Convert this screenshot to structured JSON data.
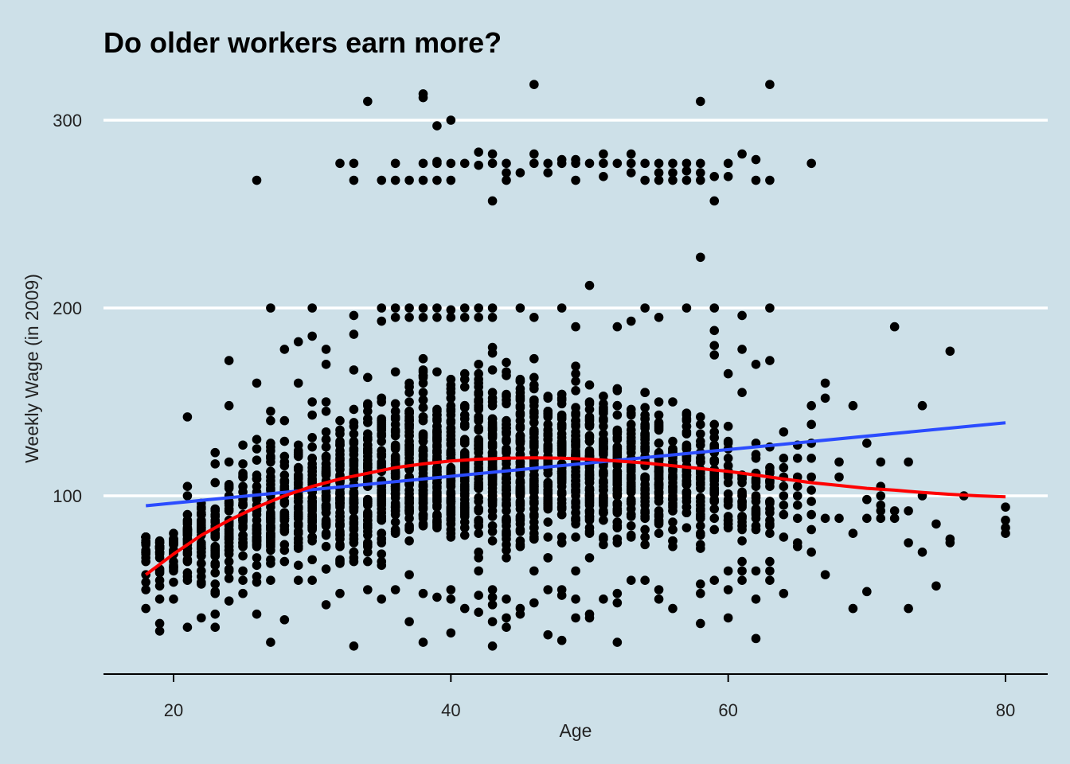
{
  "chart_data": {
    "type": "scatter",
    "title": "Do older workers earn more?",
    "xlabel": "Age",
    "ylabel": "Weekly Wage (in 2009)",
    "xlim": [
      15,
      83
    ],
    "ylim": [
      10,
      330
    ],
    "x_ticks": [
      20,
      40,
      60,
      80
    ],
    "y_ticks": [
      100,
      200,
      300
    ],
    "grid": "horizontal major lines only",
    "colors": {
      "background": "#cde0e8",
      "gridline": "#ffffff",
      "points": "#000000",
      "linear_fit": "#2b4cff",
      "smooth_fit": "#ff0000"
    },
    "fits": [
      {
        "kind": "linear",
        "color": "#2b4cff",
        "points": [
          [
            18,
            94.7
          ],
          [
            80,
            138.9
          ]
        ]
      },
      {
        "kind": "polynomial",
        "color": "#ff0000",
        "points": [
          [
            18,
            58
          ],
          [
            20,
            69
          ],
          [
            22,
            79
          ],
          [
            24,
            87
          ],
          [
            26,
            94
          ],
          [
            28,
            100
          ],
          [
            30,
            105
          ],
          [
            32,
            109
          ],
          [
            34,
            112
          ],
          [
            36,
            115
          ],
          [
            38,
            117
          ],
          [
            40,
            118.5
          ],
          [
            42,
            119.5
          ],
          [
            44,
            120
          ],
          [
            46,
            120.2
          ],
          [
            48,
            120
          ],
          [
            50,
            119.5
          ],
          [
            52,
            118.5
          ],
          [
            54,
            117.5
          ],
          [
            56,
            116
          ],
          [
            58,
            114.5
          ],
          [
            60,
            113
          ],
          [
            62,
            111
          ],
          [
            64,
            109
          ],
          [
            66,
            107
          ],
          [
            68,
            105.5
          ],
          [
            70,
            104
          ],
          [
            72,
            103
          ],
          [
            74,
            101.8
          ],
          [
            76,
            100.8
          ],
          [
            78,
            100
          ],
          [
            80,
            99.5
          ]
        ]
      }
    ],
    "bands": [
      [
        18,
        40,
        78,
        78,
        0.6
      ],
      [
        19,
        30,
        78,
        72,
        0.5
      ],
      [
        20,
        40,
        82,
        74,
        0.6
      ],
      [
        21,
        48,
        92,
        78,
        0.7
      ],
      [
        22,
        42,
        100,
        78,
        0.8
      ],
      [
        23,
        38,
        110,
        80,
        0.8
      ],
      [
        24,
        42,
        120,
        82,
        0.9
      ],
      [
        25,
        48,
        125,
        84,
        1.0
      ],
      [
        26,
        52,
        130,
        86,
        1.0
      ],
      [
        27,
        55,
        140,
        90,
        1.1
      ],
      [
        28,
        56,
        145,
        92,
        1.2
      ],
      [
        29,
        58,
        150,
        95,
        1.2
      ],
      [
        30,
        58,
        155,
        98,
        1.3
      ],
      [
        31,
        55,
        155,
        100,
        1.3
      ],
      [
        32,
        50,
        160,
        100,
        1.4
      ],
      [
        33,
        50,
        160,
        102,
        1.4
      ],
      [
        34,
        55,
        165,
        104,
        1.5
      ],
      [
        35,
        55,
        170,
        106,
        1.6
      ],
      [
        36,
        55,
        175,
        108,
        1.6
      ],
      [
        37,
        55,
        180,
        110,
        1.7
      ],
      [
        38,
        55,
        185,
        112,
        1.7
      ],
      [
        39,
        60,
        185,
        112,
        1.8
      ],
      [
        40,
        60,
        185,
        114,
        1.8
      ],
      [
        41,
        58,
        185,
        114,
        1.8
      ],
      [
        42,
        58,
        190,
        116,
        1.8
      ],
      [
        43,
        58,
        190,
        116,
        1.8
      ],
      [
        44,
        58,
        190,
        116,
        1.8
      ],
      [
        45,
        58,
        185,
        116,
        1.8
      ],
      [
        46,
        58,
        185,
        116,
        1.8
      ],
      [
        47,
        58,
        180,
        116,
        1.7
      ],
      [
        48,
        58,
        180,
        116,
        1.7
      ],
      [
        49,
        58,
        180,
        116,
        1.7
      ],
      [
        50,
        58,
        175,
        115,
        1.6
      ],
      [
        51,
        58,
        175,
        115,
        1.6
      ],
      [
        52,
        58,
        170,
        115,
        1.6
      ],
      [
        53,
        58,
        170,
        114,
        1.5
      ],
      [
        54,
        60,
        165,
        114,
        1.4
      ],
      [
        55,
        60,
        160,
        112,
        1.3
      ],
      [
        56,
        62,
        160,
        112,
        1.2
      ],
      [
        57,
        62,
        155,
        112,
        1.1
      ],
      [
        58,
        60,
        155,
        110,
        1.0
      ],
      [
        59,
        62,
        150,
        110,
        0.9
      ],
      [
        60,
        65,
        145,
        108,
        0.7
      ],
      [
        61,
        68,
        140,
        106,
        0.6
      ],
      [
        62,
        70,
        135,
        104,
        0.5
      ],
      [
        63,
        72,
        130,
        104,
        0.4
      ]
    ],
    "points": [
      [
        18,
        40
      ],
      [
        18,
        50
      ],
      [
        18,
        58
      ],
      [
        18,
        65
      ],
      [
        18,
        70
      ],
      [
        18,
        75
      ],
      [
        19,
        28
      ],
      [
        19,
        32
      ],
      [
        19,
        45
      ],
      [
        19,
        55
      ],
      [
        19,
        60
      ],
      [
        20,
        45
      ],
      [
        20,
        60
      ],
      [
        20,
        70
      ],
      [
        20,
        80
      ],
      [
        21,
        30
      ],
      [
        21,
        55
      ],
      [
        21,
        65
      ],
      [
        21,
        75
      ],
      [
        21,
        90
      ],
      [
        21,
        100
      ],
      [
        21,
        105
      ],
      [
        21,
        142
      ],
      [
        22,
        35
      ],
      [
        22,
        60
      ],
      [
        22,
        70
      ],
      [
        22,
        82
      ],
      [
        22,
        90
      ],
      [
        22,
        96
      ],
      [
        23,
        30
      ],
      [
        23,
        37
      ],
      [
        23,
        117
      ],
      [
        23,
        123
      ],
      [
        24,
        44
      ],
      [
        24,
        118
      ],
      [
        24,
        148
      ],
      [
        24,
        172
      ],
      [
        25,
        48
      ],
      [
        25,
        95
      ],
      [
        25,
        110
      ],
      [
        25,
        127
      ],
      [
        26,
        37
      ],
      [
        26,
        125
      ],
      [
        26,
        130
      ],
      [
        26,
        160
      ],
      [
        26,
        268
      ],
      [
        27,
        22
      ],
      [
        27,
        55
      ],
      [
        27,
        120
      ],
      [
        27,
        140
      ],
      [
        27,
        145
      ],
      [
        27,
        200
      ],
      [
        28,
        34
      ],
      [
        28,
        140
      ],
      [
        28,
        178
      ],
      [
        29,
        55
      ],
      [
        29,
        160
      ],
      [
        29,
        182
      ],
      [
        30,
        55
      ],
      [
        30,
        150
      ],
      [
        30,
        185
      ],
      [
        30,
        200
      ],
      [
        31,
        42
      ],
      [
        31,
        150
      ],
      [
        31,
        170
      ],
      [
        31,
        178
      ],
      [
        32,
        48
      ],
      [
        32,
        140
      ],
      [
        32,
        277
      ],
      [
        33,
        20
      ],
      [
        33,
        146
      ],
      [
        33,
        167
      ],
      [
        33,
        186
      ],
      [
        33,
        196
      ],
      [
        33,
        268
      ],
      [
        33,
        277
      ],
      [
        34,
        50
      ],
      [
        34,
        145
      ],
      [
        34,
        163
      ],
      [
        34,
        310
      ],
      [
        35,
        45
      ],
      [
        35,
        152
      ],
      [
        35,
        193
      ],
      [
        35,
        200
      ],
      [
        35,
        268
      ],
      [
        36,
        50
      ],
      [
        36,
        195
      ],
      [
        36,
        200
      ],
      [
        36,
        268
      ],
      [
        36,
        277
      ],
      [
        37,
        33
      ],
      [
        37,
        58
      ],
      [
        37,
        195
      ],
      [
        37,
        200
      ],
      [
        37,
        268
      ],
      [
        38,
        22
      ],
      [
        38,
        48
      ],
      [
        38,
        195
      ],
      [
        38,
        200
      ],
      [
        38,
        268
      ],
      [
        38,
        277
      ],
      [
        38,
        312
      ],
      [
        38,
        314
      ],
      [
        39,
        46
      ],
      [
        39,
        195
      ],
      [
        39,
        200
      ],
      [
        39,
        268
      ],
      [
        39,
        277
      ],
      [
        39,
        278
      ],
      [
        39,
        297
      ],
      [
        40,
        27
      ],
      [
        40,
        45
      ],
      [
        40,
        50
      ],
      [
        40,
        195
      ],
      [
        40,
        199
      ],
      [
        40,
        268
      ],
      [
        40,
        277
      ],
      [
        40,
        300
      ],
      [
        41,
        40
      ],
      [
        41,
        195
      ],
      [
        41,
        200
      ],
      [
        41,
        277
      ],
      [
        42,
        38
      ],
      [
        42,
        47
      ],
      [
        42,
        60
      ],
      [
        42,
        195
      ],
      [
        42,
        200
      ],
      [
        42,
        276
      ],
      [
        42,
        283
      ],
      [
        43,
        20
      ],
      [
        43,
        33
      ],
      [
        43,
        42
      ],
      [
        43,
        46
      ],
      [
        43,
        50
      ],
      [
        43,
        195
      ],
      [
        43,
        200
      ],
      [
        43,
        257
      ],
      [
        43,
        277
      ],
      [
        43,
        282
      ],
      [
        44,
        30
      ],
      [
        44,
        35
      ],
      [
        44,
        45
      ],
      [
        44,
        268
      ],
      [
        44,
        272
      ],
      [
        44,
        277
      ],
      [
        45,
        37
      ],
      [
        45,
        40
      ],
      [
        45,
        200
      ],
      [
        45,
        272
      ],
      [
        46,
        43
      ],
      [
        46,
        60
      ],
      [
        46,
        195
      ],
      [
        46,
        277
      ],
      [
        46,
        282
      ],
      [
        46,
        319
      ],
      [
        47,
        26
      ],
      [
        47,
        50
      ],
      [
        47,
        272
      ],
      [
        47,
        277
      ],
      [
        48,
        23
      ],
      [
        48,
        47
      ],
      [
        48,
        50
      ],
      [
        48,
        200
      ],
      [
        48,
        277
      ],
      [
        48,
        279
      ],
      [
        49,
        35
      ],
      [
        49,
        45
      ],
      [
        49,
        60
      ],
      [
        49,
        190
      ],
      [
        49,
        268
      ],
      [
        49,
        277
      ],
      [
        49,
        279
      ],
      [
        50,
        35
      ],
      [
        50,
        37
      ],
      [
        50,
        212
      ],
      [
        50,
        277
      ],
      [
        51,
        45
      ],
      [
        51,
        270
      ],
      [
        51,
        277
      ],
      [
        51,
        282
      ],
      [
        52,
        22
      ],
      [
        52,
        43
      ],
      [
        52,
        48
      ],
      [
        52,
        190
      ],
      [
        52,
        277
      ],
      [
        53,
        55
      ],
      [
        53,
        193
      ],
      [
        53,
        272
      ],
      [
        53,
        277
      ],
      [
        53,
        282
      ],
      [
        54,
        55
      ],
      [
        54,
        200
      ],
      [
        54,
        268
      ],
      [
        54,
        277
      ],
      [
        55,
        45
      ],
      [
        55,
        50
      ],
      [
        55,
        195
      ],
      [
        55,
        268
      ],
      [
        55,
        272
      ],
      [
        55,
        277
      ],
      [
        56,
        40
      ],
      [
        56,
        268
      ],
      [
        56,
        272
      ],
      [
        56,
        277
      ],
      [
        57,
        200
      ],
      [
        57,
        277
      ],
      [
        57,
        268
      ],
      [
        57,
        273
      ],
      [
        58,
        32
      ],
      [
        58,
        48
      ],
      [
        58,
        53
      ],
      [
        58,
        227
      ],
      [
        58,
        268
      ],
      [
        58,
        272
      ],
      [
        58,
        277
      ],
      [
        58,
        310
      ],
      [
        59,
        55
      ],
      [
        59,
        188
      ],
      [
        59,
        200
      ],
      [
        59,
        257
      ],
      [
        59,
        270
      ],
      [
        59,
        180
      ],
      [
        59,
        175
      ],
      [
        60,
        35
      ],
      [
        60,
        50
      ],
      [
        60,
        60
      ],
      [
        60,
        95
      ],
      [
        60,
        165
      ],
      [
        60,
        277
      ],
      [
        60,
        270
      ],
      [
        61,
        55
      ],
      [
        61,
        60
      ],
      [
        61,
        65
      ],
      [
        61,
        155
      ],
      [
        61,
        178
      ],
      [
        61,
        196
      ],
      [
        61,
        282
      ],
      [
        62,
        24
      ],
      [
        62,
        45
      ],
      [
        62,
        60
      ],
      [
        62,
        170
      ],
      [
        62,
        268
      ],
      [
        62,
        279
      ],
      [
        63,
        55
      ],
      [
        63,
        60
      ],
      [
        63,
        65
      ],
      [
        63,
        80
      ],
      [
        63,
        85
      ],
      [
        63,
        172
      ],
      [
        63,
        200
      ],
      [
        63,
        268
      ],
      [
        63,
        319
      ],
      [
        64,
        48
      ],
      [
        64,
        78
      ],
      [
        64,
        90
      ],
      [
        64,
        95
      ],
      [
        64,
        100
      ],
      [
        64,
        105
      ],
      [
        64,
        110
      ],
      [
        64,
        115
      ],
      [
        64,
        120
      ],
      [
        64,
        134
      ],
      [
        65,
        73
      ],
      [
        65,
        75
      ],
      [
        65,
        88
      ],
      [
        65,
        95
      ],
      [
        65,
        100
      ],
      [
        65,
        105
      ],
      [
        65,
        110
      ],
      [
        65,
        120
      ],
      [
        65,
        127
      ],
      [
        66,
        70
      ],
      [
        66,
        82
      ],
      [
        66,
        90
      ],
      [
        66,
        97
      ],
      [
        66,
        103
      ],
      [
        66,
        110
      ],
      [
        66,
        120
      ],
      [
        66,
        128
      ],
      [
        66,
        138
      ],
      [
        66,
        148
      ],
      [
        66,
        277
      ],
      [
        67,
        58
      ],
      [
        67,
        88
      ],
      [
        67,
        152
      ],
      [
        67,
        160
      ],
      [
        68,
        88
      ],
      [
        68,
        110
      ],
      [
        68,
        118
      ],
      [
        69,
        40
      ],
      [
        69,
        80
      ],
      [
        69,
        148
      ],
      [
        70,
        49
      ],
      [
        70,
        88
      ],
      [
        70,
        98
      ],
      [
        70,
        128
      ],
      [
        71,
        88
      ],
      [
        71,
        92
      ],
      [
        71,
        95
      ],
      [
        71,
        100
      ],
      [
        71,
        105
      ],
      [
        71,
        118
      ],
      [
        72,
        88
      ],
      [
        72,
        92
      ],
      [
        72,
        190
      ],
      [
        73,
        40
      ],
      [
        73,
        75
      ],
      [
        73,
        92
      ],
      [
        73,
        118
      ],
      [
        74,
        70
      ],
      [
        74,
        100
      ],
      [
        74,
        148
      ],
      [
        75,
        52
      ],
      [
        75,
        85
      ],
      [
        76,
        75
      ],
      [
        76,
        77
      ],
      [
        76,
        177
      ],
      [
        77,
        100
      ],
      [
        80,
        80
      ],
      [
        80,
        83
      ],
      [
        80,
        87
      ],
      [
        80,
        94
      ]
    ]
  }
}
